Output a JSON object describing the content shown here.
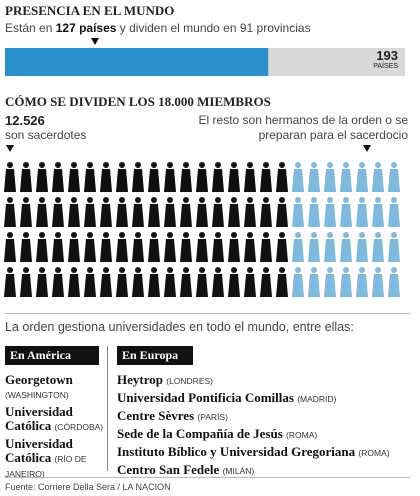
{
  "presence": {
    "title": "PRESENCIA EN EL MUNDO",
    "text_before": "Están en",
    "highlight": "127 países",
    "text_after": "y dividen el mundo en 91 provincias",
    "countries": 127,
    "total": 193,
    "total_label": "PAÍSES"
  },
  "members": {
    "title": "CÓMO SE DIVIDEN LOS 18.000 MIEMBROS",
    "priests": "12.526",
    "priests_label": "son sacerdotes",
    "rest_label": "El resto son hermanos de la orden o se preparan para el sacerdocio"
  },
  "universities": {
    "intro": "La orden gestiona universidades en todo el mundo, entre ellas:",
    "america": {
      "title": "En América",
      "items": [
        {
          "name": "Georgetown",
          "city": "(WASHINGTON)"
        },
        {
          "name": "Universidad Católica",
          "city": "(CÓRDOBA)"
        },
        {
          "name": "Universidad Católica",
          "city": "(RÍO DE JANEIRO)"
        }
      ]
    },
    "europe": {
      "title": "En Europa",
      "items": [
        {
          "name": "Heytrop",
          "city": "(LONDRES)"
        },
        {
          "name": "Universidad Pontificia Comillas",
          "city": "(MADRID)"
        },
        {
          "name": "Centre Sèvres",
          "city": "(PARÍS)"
        },
        {
          "name": "Sede de la Compañía de Jesús",
          "city": "(ROMA)"
        },
        {
          "name": "Instituto Bíblico y Universidad Gregoriana",
          "city": "(ROMA)"
        },
        {
          "name": "Centro San Fedele",
          "city": "(MILÁN)"
        }
      ]
    }
  },
  "source": "Fuente: Corriere Della Sera / LA NACION"
}
